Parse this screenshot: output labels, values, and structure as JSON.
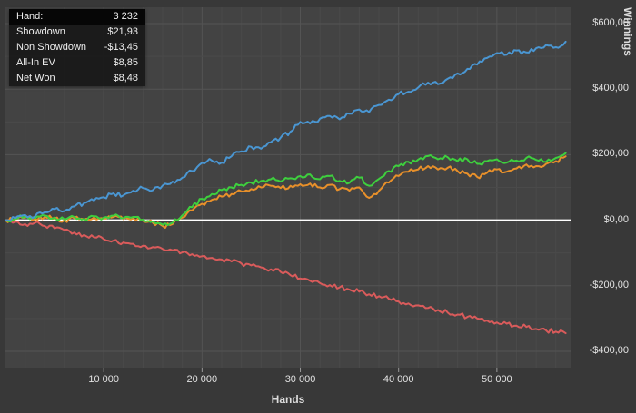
{
  "legend": {
    "rows": [
      {
        "label": "Hand:",
        "value": "3 232"
      },
      {
        "label": "Showdown",
        "value": "$21,93"
      },
      {
        "label": "Non Showdown",
        "value": "-$13,45"
      },
      {
        "label": "All-In EV",
        "value": "$8,85"
      },
      {
        "label": "Net Won",
        "value": "$8,48"
      }
    ]
  },
  "chart_data": {
    "type": "line",
    "title": "",
    "xlabel": "Hands",
    "ylabel": "Winnings",
    "xlim": [
      0,
      57500
    ],
    "ylim": [
      -450,
      650
    ],
    "x_step": 1000,
    "grid": true,
    "legend_position": "top-left",
    "zero_line": {
      "value": 0,
      "color": "#ffffff"
    },
    "x_ticks": [
      {
        "value": 10000,
        "label": "10 000"
      },
      {
        "value": 20000,
        "label": "20 000"
      },
      {
        "value": 30000,
        "label": "30 000"
      },
      {
        "value": 40000,
        "label": "40 000"
      },
      {
        "value": 50000,
        "label": "50 000"
      }
    ],
    "y_ticks": [
      {
        "value": 600,
        "label": "$600,00"
      },
      {
        "value": 400,
        "label": "$400,00"
      },
      {
        "value": 200,
        "label": "$200,00"
      },
      {
        "value": 0,
        "label": "$0,00"
      },
      {
        "value": -200,
        "label": "-$200,00"
      },
      {
        "value": -400,
        "label": "-$400,00"
      }
    ],
    "series": [
      {
        "name": "Non Showdown",
        "color": "#d95b5b",
        "values": [
          0,
          -5,
          -12,
          -8,
          -18,
          -25,
          -30,
          -38,
          -45,
          -52,
          -58,
          -62,
          -68,
          -72,
          -78,
          -82,
          -88,
          -92,
          -98,
          -104,
          -110,
          -115,
          -120,
          -126,
          -132,
          -138,
          -144,
          -150,
          -158,
          -168,
          -178,
          -185,
          -192,
          -198,
          -205,
          -212,
          -218,
          -226,
          -232,
          -240,
          -248,
          -254,
          -260,
          -268,
          -274,
          -282,
          -288,
          -295,
          -300,
          -306,
          -312,
          -316,
          -322,
          -326,
          -332,
          -336,
          -340,
          -345
        ]
      },
      {
        "name": "All-In EV",
        "color": "#e8902a",
        "values": [
          0,
          3,
          8,
          4,
          10,
          5,
          0,
          6,
          2,
          8,
          5,
          10,
          3,
          6,
          -2,
          -8,
          -18,
          -12,
          8,
          30,
          50,
          62,
          72,
          80,
          88,
          95,
          100,
          105,
          98,
          105,
          110,
          112,
          100,
          108,
          95,
          90,
          100,
          68,
          90,
          115,
          135,
          148,
          155,
          165,
          155,
          160,
          150,
          142,
          132,
          145,
          155,
          148,
          158,
          170,
          165,
          172,
          180,
          195
        ]
      },
      {
        "name": "Net Won",
        "color": "#3ecf3e",
        "values": [
          0,
          5,
          12,
          6,
          14,
          8,
          2,
          10,
          4,
          12,
          8,
          14,
          6,
          10,
          2,
          -4,
          -14,
          -8,
          15,
          40,
          65,
          80,
          92,
          100,
          108,
          115,
          120,
          125,
          118,
          128,
          135,
          140,
          125,
          135,
          120,
          114,
          130,
          105,
          126,
          150,
          165,
          178,
          185,
          196,
          186,
          192,
          180,
          186,
          172,
          180,
          186,
          176,
          182,
          190,
          184,
          178,
          190,
          205
        ]
      },
      {
        "name": "Showdown",
        "color": "#4a96d2",
        "values": [
          0,
          6,
          16,
          12,
          24,
          34,
          28,
          42,
          52,
          60,
          70,
          82,
          76,
          90,
          98,
          92,
          106,
          118,
          130,
          150,
          175,
          182,
          176,
          195,
          210,
          224,
          218,
          238,
          252,
          270,
          300,
          295,
          310,
          318,
          308,
          325,
          338,
          330,
          352,
          368,
          385,
          392,
          405,
          420,
          415,
          432,
          448,
          462,
          475,
          495,
          510,
          505,
          518,
          512,
          525,
          535,
          528,
          545
        ]
      }
    ]
  },
  "colors": {
    "background": "#383838",
    "plot_background": "#434343",
    "grid_minor": "#4a4a4a",
    "grid_major": "#545454",
    "tick_mark": "#999999",
    "text": "#e2e2e2"
  }
}
